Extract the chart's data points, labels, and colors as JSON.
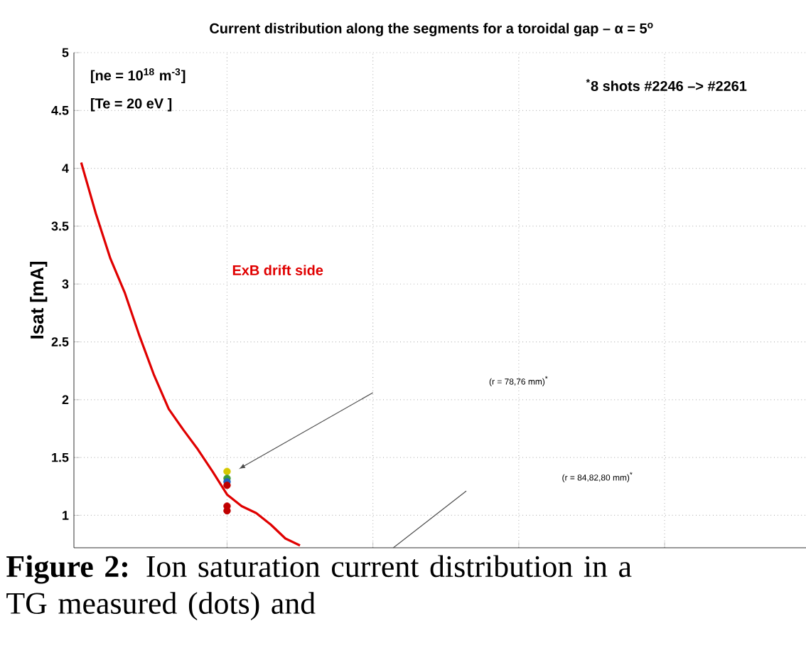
{
  "chart_data": {
    "type": "line",
    "title": "Current distribution along the segments for a toroidal gap – α = 5$^{o}$",
    "ylabel": "Isat [mA]",
    "categories": [
      null,
      null,
      null,
      null,
      null,
      null,
      null,
      null,
      null,
      null,
      null,
      null,
      null,
      null,
      null,
      null,
      null,
      null,
      null,
      null,
      null,
      null,
      null,
      null,
      null,
      null,
      null,
      null,
      null,
      null,
      null,
      null,
      null,
      null,
      null,
      null,
      null,
      null,
      null,
      null,
      null,
      null,
      null,
      null,
      null,
      null,
      null,
      null,
      null,
      null,
      null
    ],
    "ylim": [
      0.72,
      5
    ],
    "yticks": [
      1,
      1.5,
      2,
      2.5,
      3,
      3.5,
      4,
      4.5,
      5
    ],
    "grid": true,
    "series": [
      {
        "name": "ExB drift side",
        "color": "#e00000",
        "values": [
          4.05,
          3.61,
          3.22,
          2.92,
          2.55,
          2.21,
          1.92,
          1.74,
          1.57,
          1.38,
          1.18,
          1.08,
          1.02,
          0.92,
          0.8,
          0.74,
          null,
          null,
          null,
          null,
          null,
          null,
          null,
          null,
          null,
          null,
          null,
          null,
          null,
          null,
          null,
          null,
          null,
          null,
          null,
          null,
          null,
          null,
          null,
          null,
          null,
          null,
          null,
          null,
          null,
          null,
          null,
          null,
          null,
          null,
          null
        ]
      },
      {
        "type": "scatter",
        "marker": "circle",
        "color": "#d4c800",
        "values": [
          null,
          null,
          null,
          null,
          null,
          null,
          null,
          null,
          null,
          null,
          1.38,
          null,
          null,
          null,
          null,
          null,
          null,
          null,
          null,
          null,
          null,
          null,
          null,
          null,
          null,
          null,
          null,
          null,
          null,
          null,
          null,
          null,
          null,
          null,
          null,
          null,
          null,
          null,
          null,
          null,
          null,
          null,
          null,
          null,
          null,
          null,
          null,
          null,
          null,
          null,
          null
        ]
      },
      {
        "type": "scatter",
        "marker": "circle",
        "color": "#3a9a3a",
        "values": [
          null,
          null,
          null,
          null,
          null,
          null,
          null,
          null,
          null,
          null,
          1.32,
          null,
          null,
          null,
          null,
          null,
          null,
          null,
          null,
          null,
          null,
          null,
          null,
          null,
          null,
          null,
          null,
          null,
          null,
          null,
          null,
          null,
          null,
          null,
          null,
          null,
          null,
          null,
          null,
          null,
          null,
          null,
          null,
          null,
          null,
          null,
          null,
          null,
          null,
          null,
          null
        ]
      },
      {
        "type": "scatter",
        "marker": "circle",
        "color": "#2060c0",
        "values": [
          null,
          null,
          null,
          null,
          null,
          null,
          null,
          null,
          null,
          null,
          1.29,
          null,
          null,
          null,
          null,
          null,
          null,
          null,
          null,
          null,
          null,
          null,
          null,
          null,
          null,
          null,
          null,
          null,
          null,
          null,
          null,
          null,
          null,
          null,
          null,
          null,
          null,
          null,
          null,
          null,
          null,
          null,
          null,
          null,
          null,
          null,
          null,
          null,
          null,
          null,
          null
        ]
      },
      {
        "type": "scatter",
        "marker": "circle",
        "color": "#c00000",
        "values": [
          null,
          null,
          null,
          null,
          null,
          null,
          null,
          null,
          null,
          null,
          1.26,
          null,
          null,
          null,
          null,
          null,
          null,
          null,
          null,
          null,
          null,
          null,
          null,
          null,
          null,
          null,
          null,
          null,
          null,
          null,
          null,
          null,
          null,
          null,
          null,
          null,
          null,
          null,
          null,
          null,
          null,
          null,
          null,
          null,
          null,
          null,
          null,
          null,
          null,
          null,
          null
        ]
      },
      {
        "type": "scatter",
        "marker": "circle",
        "color": "#c00000",
        "values": [
          null,
          null,
          null,
          null,
          null,
          null,
          null,
          null,
          null,
          null,
          1.08,
          null,
          null,
          null,
          null,
          null,
          null,
          null,
          null,
          null,
          null,
          null,
          null,
          null,
          null,
          null,
          null,
          null,
          null,
          null,
          null,
          null,
          null,
          null,
          null,
          null,
          null,
          null,
          null,
          null,
          null,
          null,
          null,
          null,
          null,
          null,
          null,
          null,
          null,
          null,
          null
        ]
      },
      {
        "type": "scatter",
        "marker": "circle",
        "color": "#c00000",
        "values": [
          null,
          null,
          null,
          null,
          null,
          null,
          null,
          null,
          null,
          null,
          1.04,
          null,
          null,
          null,
          null,
          null,
          null,
          null,
          null,
          null,
          null,
          null,
          null,
          null,
          null,
          null,
          null,
          null,
          null,
          null,
          null,
          null,
          null,
          null,
          null,
          null,
          null,
          null,
          null,
          null,
          null,
          null,
          null,
          null,
          null,
          null,
          null,
          null,
          null,
          null,
          null
        ]
      }
    ],
    "annotations": [
      "[ne = 10$^{18}$ m$^{-3}$]",
      "[Te = 20 eV ]",
      "$^{*}$8 shots #2246 –> #2261",
      "(r = 78,76 mm)$^{*}$",
      "(r = 84,82,80 mm)$^{*}$",
      "**Figure 2:** Ion saturation current distribution in a TG measured (dots) and"
    ]
  }
}
